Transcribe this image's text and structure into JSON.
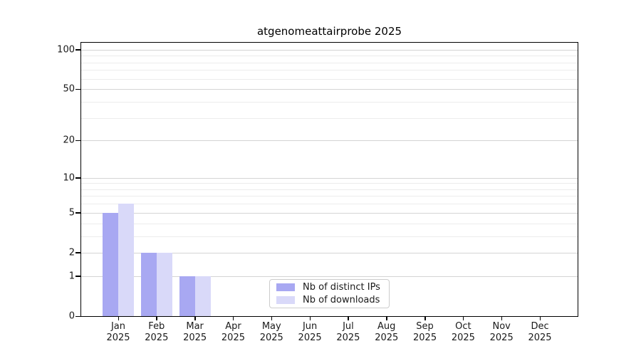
{
  "chart_data": {
    "type": "bar",
    "title": "atgenomeattairprobe 2025",
    "categories": [
      "Jan 2025",
      "Feb 2025",
      "Mar 2025",
      "Apr 2025",
      "May 2025",
      "Jun 2025",
      "Jul 2025",
      "Aug 2025",
      "Sep 2025",
      "Oct 2025",
      "Nov 2025",
      "Dec 2025"
    ],
    "series": [
      {
        "name": "Nb of distinct IPs",
        "color": "#a8a8f2",
        "values": [
          5,
          2,
          1,
          0,
          0,
          0,
          0,
          0,
          0,
          0,
          0,
          0
        ]
      },
      {
        "name": "Nb of downloads",
        "color": "#d9d9f9",
        "values": [
          6,
          2,
          1,
          0,
          0,
          0,
          0,
          0,
          0,
          0,
          0,
          0
        ]
      }
    ],
    "xlabel": "",
    "ylabel": "",
    "yscale": "log1p",
    "ylim": [
      0,
      113
    ],
    "major_yticks": [
      0,
      1,
      2,
      5,
      10,
      20,
      50,
      100
    ],
    "minor_yticks": [
      3,
      4,
      6,
      7,
      8,
      9,
      30,
      40,
      60,
      70,
      80,
      90
    ],
    "grid": true,
    "legend_position": "lower center"
  },
  "colors": {
    "major_grid": "#d4d4d4",
    "minor_grid": "#ececec",
    "axis": "#000000",
    "legend_border": "#cccccc",
    "background": "#ffffff"
  }
}
